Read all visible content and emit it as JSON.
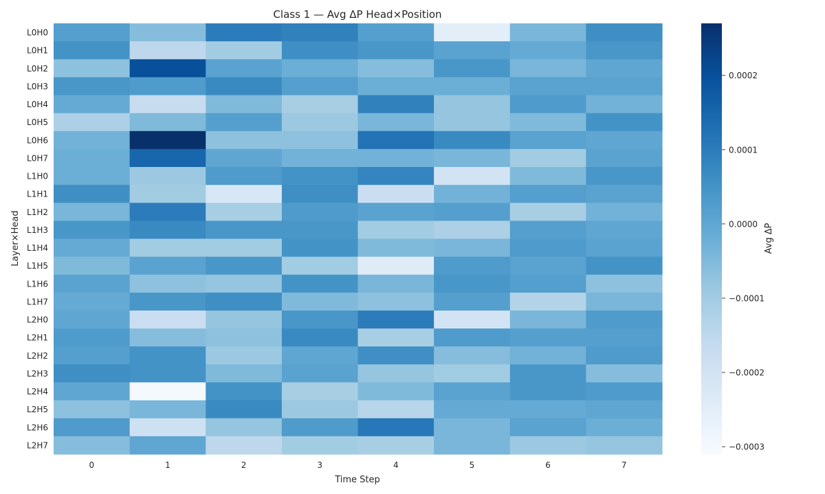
{
  "chart_data": {
    "type": "heatmap",
    "title": "Class 1 — Avg ΔP Head×Position",
    "xlabel": "Time Step",
    "ylabel": "Layer×Head",
    "x_categories": [
      "0",
      "1",
      "2",
      "3",
      "4",
      "5",
      "6",
      "7"
    ],
    "y_categories": [
      "L0H0",
      "L0H1",
      "L0H2",
      "L0H3",
      "L0H4",
      "L0H5",
      "L0H6",
      "L0H7",
      "L1H0",
      "L1H1",
      "L1H2",
      "L1H3",
      "L1H4",
      "L1H5",
      "L1H6",
      "L1H7",
      "L2H0",
      "L2H1",
      "L2H2",
      "L2H3",
      "L2H4",
      "L2H5",
      "L2H6",
      "L2H7"
    ],
    "values": [
      [
        2e-05,
        -6e-05,
        0.0001,
        9e-05,
        2e-05,
        -0.00025,
        -4e-05,
        6e-05
      ],
      [
        5e-05,
        -0.00015,
        -0.0001,
        6e-05,
        4e-05,
        1e-05,
        -1e-05,
        4e-05
      ],
      [
        -7e-05,
        0.0002,
        1e-05,
        -2e-05,
        -6e-05,
        4e-05,
        -4e-05,
        0.0
      ],
      [
        4e-05,
        3e-05,
        7e-05,
        2e-05,
        -2e-05,
        -2e-05,
        1e-05,
        1e-05
      ],
      [
        -1e-05,
        -0.00017,
        -5e-05,
        -0.00011,
        9e-05,
        -8e-05,
        3e-05,
        -3e-05
      ],
      [
        -0.00012,
        -5e-05,
        2e-05,
        -9e-05,
        -4e-05,
        -8e-05,
        -5e-05,
        5e-05
      ],
      [
        -3e-05,
        0.00027,
        -7e-05,
        -7e-05,
        0.00012,
        7e-05,
        1e-05,
        0.0
      ],
      [
        -2e-05,
        0.00015,
        0.0,
        -3e-05,
        -3e-05,
        -4e-05,
        -0.0001,
        1e-05
      ],
      [
        -2e-05,
        -9e-05,
        3e-05,
        5e-05,
        8e-05,
        -0.0002,
        -5e-05,
        4e-05
      ],
      [
        6e-05,
        -0.0001,
        -0.00022,
        6e-05,
        -0.00018,
        -3e-05,
        2e-05,
        1e-05
      ],
      [
        -4e-05,
        0.0001,
        -0.00011,
        3e-05,
        1e-05,
        2e-05,
        -0.00011,
        -3e-05
      ],
      [
        4e-05,
        7e-05,
        4e-05,
        4e-05,
        -0.0001,
        -0.00012,
        2e-05,
        0.0
      ],
      [
        -1e-05,
        -0.0001,
        -0.0001,
        5e-05,
        -5e-05,
        -4e-05,
        3e-05,
        1e-05
      ],
      [
        -5e-05,
        1e-05,
        4e-05,
        -0.0001,
        -0.00024,
        3e-05,
        1e-05,
        5e-05
      ],
      [
        1e-05,
        -7e-05,
        -8e-05,
        5e-05,
        -4e-05,
        4e-05,
        2e-05,
        -7e-05
      ],
      [
        -1e-05,
        4e-05,
        6e-05,
        -5e-05,
        -7e-05,
        2e-05,
        -0.00013,
        -4e-05
      ],
      [
        0.0,
        -0.00018,
        -8e-05,
        4e-05,
        0.0001,
        -0.0002,
        -4e-05,
        3e-05
      ],
      [
        3e-05,
        -6e-05,
        -7e-05,
        7e-05,
        -0.00011,
        3e-05,
        2e-05,
        2e-05
      ],
      [
        2e-05,
        5e-05,
        -9e-05,
        0.0,
        6e-05,
        -6e-05,
        -3e-05,
        3e-05
      ],
      [
        6e-05,
        5e-05,
        -5e-05,
        1e-05,
        -8e-05,
        -0.0001,
        4e-05,
        -6e-05
      ],
      [
        0.0,
        -0.0003,
        5e-05,
        -0.00011,
        -5e-05,
        1e-05,
        4e-05,
        3e-05
      ],
      [
        -7e-05,
        -4e-05,
        7e-05,
        -9e-05,
        -0.00014,
        -1e-05,
        -1e-05,
        0.0
      ],
      [
        3e-05,
        -0.00019,
        -8e-05,
        3e-05,
        0.00011,
        -4e-05,
        1e-05,
        -2e-05
      ],
      [
        -6e-05,
        0.0,
        -0.00015,
        -0.0001,
        -0.00011,
        -4e-05,
        -9e-05,
        -8e-05
      ]
    ],
    "colorbar": {
      "label": "Avg ΔP",
      "min": -0.00031,
      "max": 0.00027,
      "ticks": [
        0.0002,
        0.0001,
        0.0,
        -0.0001,
        -0.0002,
        -0.0003
      ],
      "tick_labels": [
        "0.0002",
        "0.0001",
        "0.0000",
        "−0.0001",
        "−0.0002",
        "−0.0003"
      ],
      "colormap": "Blues",
      "stops": [
        "#f7fbff",
        "#deebf7",
        "#c6dbef",
        "#9ecae1",
        "#6baed6",
        "#4292c6",
        "#2171b5",
        "#08519c",
        "#08306b"
      ]
    },
    "grid": false
  }
}
